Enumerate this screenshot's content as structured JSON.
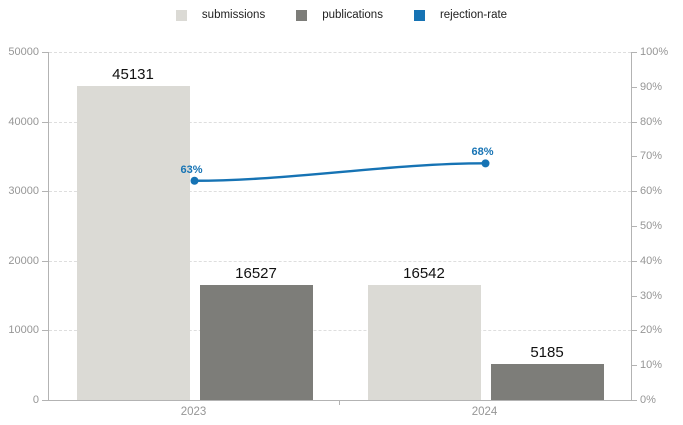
{
  "chart_data": {
    "type": "bar",
    "categories": [
      "2023",
      "2024"
    ],
    "series": [
      {
        "name": "submissions",
        "type": "bar",
        "axis": "left",
        "color": "#dbdad5",
        "values": [
          45131,
          16542
        ],
        "data_labels": [
          "45131",
          "16542"
        ]
      },
      {
        "name": "publications",
        "type": "bar",
        "axis": "left",
        "color": "#7d7d79",
        "values": [
          16527,
          5185
        ],
        "data_labels": [
          "16527",
          "5185"
        ]
      },
      {
        "name": "rejection-rate",
        "type": "line",
        "axis": "right",
        "color": "#1673b4",
        "values": [
          63,
          68
        ],
        "data_labels": [
          "63%",
          "68%"
        ]
      }
    ],
    "left_axis": {
      "min": 0,
      "max": 50000,
      "ticks": [
        0,
        10000,
        20000,
        30000,
        40000,
        50000
      ],
      "tick_labels": [
        "0",
        "10000",
        "20000",
        "30000",
        "40000",
        "50000"
      ]
    },
    "right_axis": {
      "min": 0,
      "max": 100,
      "ticks": [
        0,
        10,
        20,
        30,
        40,
        50,
        60,
        70,
        80,
        90,
        100
      ],
      "tick_labels": [
        "0%",
        "10%",
        "20%",
        "30%",
        "40%",
        "50%",
        "60%",
        "70%",
        "80%",
        "90%",
        "100%"
      ]
    },
    "grid": {
      "horizontal": true,
      "style": "dashed",
      "at_left_values": [
        10000,
        20000,
        30000,
        40000,
        50000
      ]
    },
    "legend_position": "top-center"
  },
  "colors": {
    "background": "#ffffff",
    "axis_line": "#b3b3b3",
    "gridline": "#dedede",
    "tick_text": "#969696",
    "bar_label_text": "#111111",
    "accent_blue": "#1673b4"
  }
}
